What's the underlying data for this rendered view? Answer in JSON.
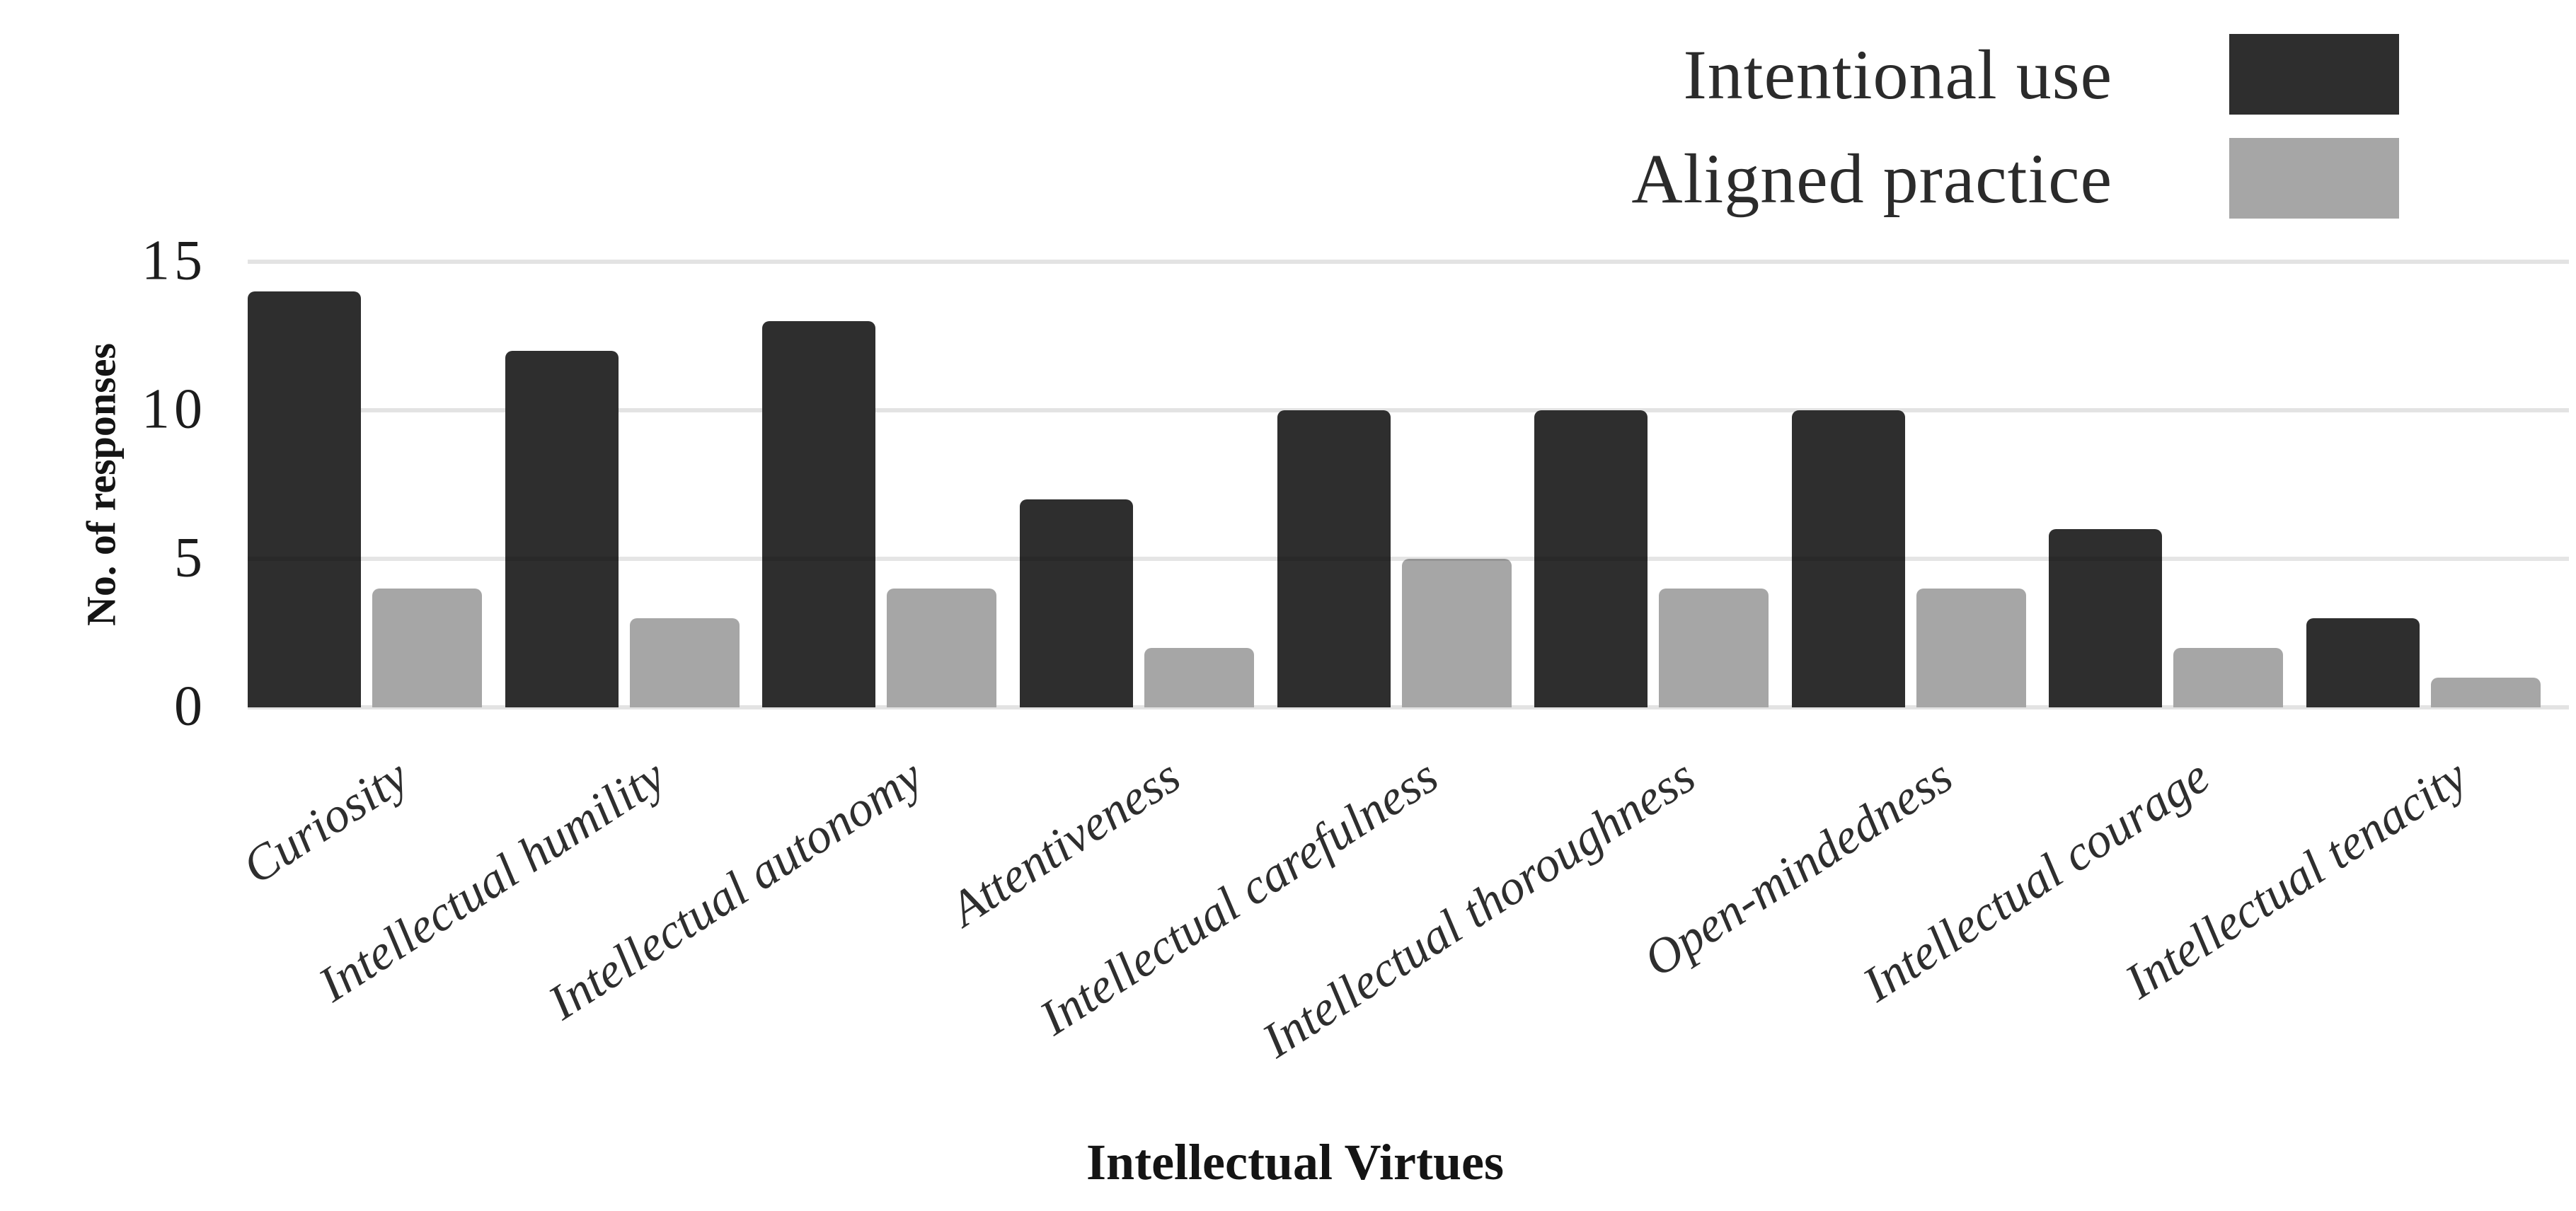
{
  "chart_data": {
    "type": "bar",
    "title": "",
    "categories": [
      "Curiosity",
      "Intellectual humility",
      "Intellectual autonomy",
      "Attentiveness",
      "Intellectual carefulness",
      "Intellectual thoroughness",
      "Open-mindedness",
      "Intellectual courage",
      "Intellectual tenacity"
    ],
    "series": [
      {
        "name": "Intentional use",
        "color": "#2e2e2e",
        "values": [
          14,
          12,
          13,
          7,
          10,
          10,
          10,
          6,
          3
        ]
      },
      {
        "name": "Aligned practice",
        "color": "#a6a6a6",
        "values": [
          4,
          3,
          4,
          2,
          5,
          4,
          4,
          2,
          1
        ]
      }
    ],
    "xlabel": "Intellectual Virtues",
    "ylabel": "No. of responses",
    "ylim": [
      0,
      15
    ],
    "yticks": [
      0,
      5,
      10,
      15
    ],
    "grid": true,
    "gridline_color": "#e3e3e3",
    "background_color": "#ffffff",
    "legend_position": "top-right"
  }
}
